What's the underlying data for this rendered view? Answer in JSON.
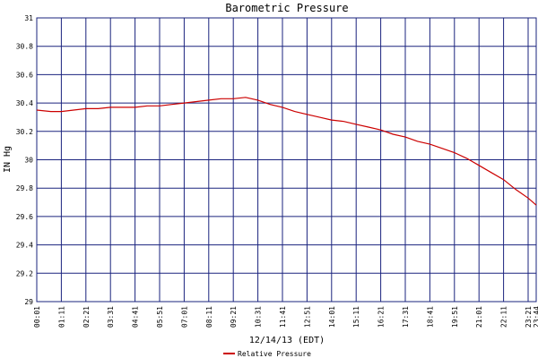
{
  "colors": {
    "background": "#ffffff",
    "grid": "#1a237e",
    "line": "#cc0000",
    "frame": "#1a237e"
  },
  "chart_data": {
    "type": "line",
    "title": "Barometric Pressure",
    "xlabel": "12/14/13 (EDT)",
    "ylabel": "IN Hg",
    "ylim": [
      29,
      31
    ],
    "yticks": [
      29,
      29.2,
      29.4,
      29.6,
      29.8,
      30,
      30.2,
      30.4,
      30.6,
      30.8,
      31
    ],
    "ytick_labels": [
      "29",
      "29.2",
      "29.4",
      "29.6",
      "29.8",
      "30",
      "30.2",
      "30.4",
      "30.6",
      "30.8",
      "31"
    ],
    "xlim": [
      "00:01",
      "23:44"
    ],
    "xticks": [
      "00:01",
      "01:11",
      "02:21",
      "03:31",
      "04:41",
      "05:51",
      "07:01",
      "08:11",
      "09:21",
      "10:31",
      "11:41",
      "12:51",
      "14:01",
      "15:11",
      "16:21",
      "17:31",
      "18:41",
      "19:51",
      "21:01",
      "22:11",
      "23:21",
      "23:44"
    ],
    "grid": true,
    "legend_position": "bottom-center",
    "series": [
      {
        "name": "Relative Pressure",
        "x": [
          "00:01",
          "00:41",
          "01:11",
          "01:46",
          "02:21",
          "02:56",
          "03:31",
          "04:06",
          "04:41",
          "05:16",
          "05:51",
          "06:26",
          "07:01",
          "07:36",
          "08:11",
          "08:46",
          "09:21",
          "09:56",
          "10:31",
          "11:06",
          "11:41",
          "12:16",
          "12:51",
          "13:26",
          "14:01",
          "14:36",
          "15:11",
          "15:46",
          "16:21",
          "16:56",
          "17:31",
          "18:06",
          "18:41",
          "19:16",
          "19:51",
          "20:26",
          "21:01",
          "21:36",
          "22:11",
          "22:46",
          "23:21",
          "23:44"
        ],
        "values": [
          30.35,
          30.34,
          30.34,
          30.35,
          30.36,
          30.36,
          30.37,
          30.37,
          30.37,
          30.38,
          30.38,
          30.39,
          30.4,
          30.41,
          30.42,
          30.43,
          30.43,
          30.44,
          30.42,
          30.39,
          30.37,
          30.34,
          30.32,
          30.3,
          30.28,
          30.27,
          30.25,
          30.23,
          30.21,
          30.18,
          30.16,
          30.13,
          30.11,
          30.08,
          30.05,
          30.01,
          29.96,
          29.91,
          29.86,
          29.79,
          29.73,
          29.68
        ]
      }
    ]
  }
}
